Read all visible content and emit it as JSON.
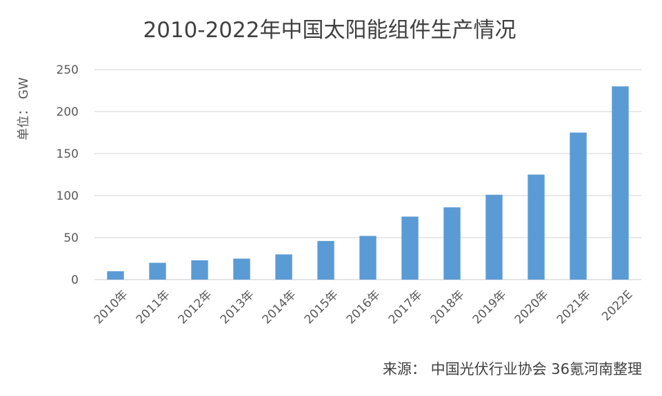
{
  "chart_data": {
    "type": "bar",
    "title": "2010-2022年中国太阳能组件生产情况",
    "xlabel": "",
    "ylabel": "单位：  GW",
    "categories": [
      "2010年",
      "2011年",
      "2012年",
      "2013年",
      "2014年",
      "2015年",
      "2016年",
      "2017年",
      "2018年",
      "2019年",
      "2020年",
      "2021年",
      "2022E"
    ],
    "values": [
      10,
      20,
      23,
      25,
      30,
      46,
      52,
      75,
      86,
      101,
      125,
      175,
      230
    ],
    "ylim": [
      0,
      250
    ],
    "yticks": [
      0,
      50,
      100,
      150,
      200,
      250
    ],
    "grid": true,
    "legend": "none",
    "bar_color": "#5B9BD5",
    "grid_color": "#D9D9D9"
  },
  "source": "来源：  中国光伏行业协会  36氪河南整理"
}
